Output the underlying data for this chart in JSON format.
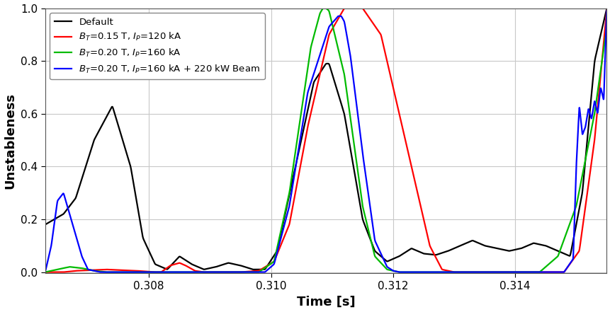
{
  "title": "",
  "xlabel": "Time [s]",
  "ylabel": "Unstableness",
  "xlim": [
    0.3063,
    0.3155
  ],
  "ylim": [
    0.0,
    1.0
  ],
  "yticks": [
    0.0,
    0.2,
    0.4,
    0.6,
    0.8,
    1.0
  ],
  "xticks": [
    0.308,
    0.31,
    0.312,
    0.314
  ],
  "legend": [
    {
      "label": "Default",
      "color": "#000000"
    },
    {
      "label": "$B_T$=0.15 T, $I_P$=120 kA",
      "color": "#ff0000"
    },
    {
      "label": "$B_T$=0.20 T, $I_P$=160 kA",
      "color": "#00bb00"
    },
    {
      "label": "$B_T$=0.20 T, $I_P$=160 kA + 220 kW Beam",
      "color": "#0000ff"
    }
  ],
  "background_color": "#ffffff",
  "grid_color": "#c8c8c8"
}
